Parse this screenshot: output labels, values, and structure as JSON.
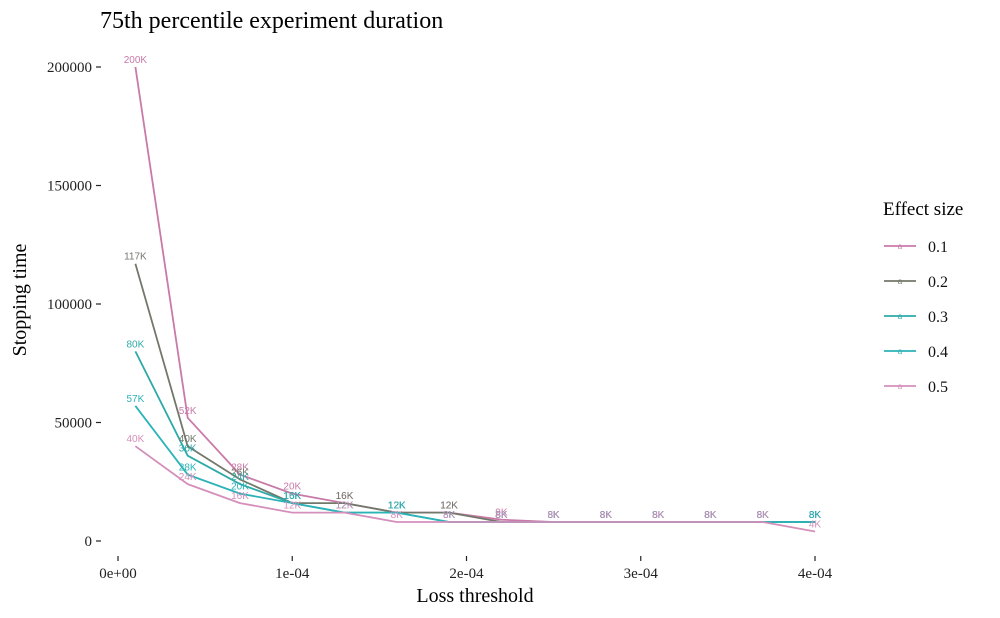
{
  "chart_data": {
    "type": "line",
    "title": "75th percentile experiment duration",
    "xlabel": "Loss threshold",
    "ylabel": "Stopping time",
    "xlim": [
      -1e-05,
      0.00042
    ],
    "ylim": [
      -5000,
      205000
    ],
    "x_ticks": [
      0,
      0.0001,
      0.0002,
      0.0003,
      0.0004
    ],
    "x_tick_labels": [
      "0e+00",
      "1e-04",
      "2e-04",
      "3e-04",
      "4e-04"
    ],
    "y_ticks": [
      0,
      50000,
      100000,
      150000,
      200000
    ],
    "y_tick_labels": [
      "0",
      "50000",
      "100000",
      "150000",
      "200000"
    ],
    "grid": false,
    "legend": {
      "title": "Effect size",
      "placement": "right",
      "glyph": "a"
    },
    "series": [
      {
        "name": "0.1",
        "color": "#c97aa8",
        "points": [
          {
            "x": 1e-05,
            "y": 200000,
            "label": "200K"
          },
          {
            "x": 4e-05,
            "y": 52000,
            "label": "52K"
          },
          {
            "x": 7e-05,
            "y": 28000,
            "label": "28K"
          },
          {
            "x": 0.0001,
            "y": 20000,
            "label": "20K"
          },
          {
            "x": 0.00013,
            "y": 16000,
            "label": "16K"
          },
          {
            "x": 0.00016,
            "y": 12000,
            "label": "12K"
          },
          {
            "x": 0.00019,
            "y": 12000,
            "label": "12K"
          },
          {
            "x": 0.00022,
            "y": 9000,
            "label": "9K"
          },
          {
            "x": 0.00025,
            "y": 8000,
            "label": "8K"
          },
          {
            "x": 0.00028,
            "y": 8000,
            "label": "8K"
          },
          {
            "x": 0.00031,
            "y": 8000,
            "label": "8K"
          },
          {
            "x": 0.00034,
            "y": 8000,
            "label": "8K"
          },
          {
            "x": 0.00037,
            "y": 8000,
            "label": "8K"
          },
          {
            "x": 0.0004,
            "y": 8000,
            "label": "8K"
          }
        ]
      },
      {
        "name": "0.2",
        "color": "#72786a",
        "points": [
          {
            "x": 1e-05,
            "y": 117000,
            "label": "117K"
          },
          {
            "x": 4e-05,
            "y": 40000,
            "label": "40K"
          },
          {
            "x": 7e-05,
            "y": 26000,
            "label": "26K"
          },
          {
            "x": 0.0001,
            "y": 16000,
            "label": "16K"
          },
          {
            "x": 0.00013,
            "y": 16000,
            "label": "16K"
          },
          {
            "x": 0.00016,
            "y": 12000,
            "label": "12K"
          },
          {
            "x": 0.00019,
            "y": 12000,
            "label": "12K"
          },
          {
            "x": 0.00022,
            "y": 8000,
            "label": "8K"
          },
          {
            "x": 0.00025,
            "y": 8000,
            "label": "8K"
          },
          {
            "x": 0.00028,
            "y": 8000,
            "label": "8K"
          },
          {
            "x": 0.00031,
            "y": 8000,
            "label": "8K"
          },
          {
            "x": 0.00034,
            "y": 8000,
            "label": "8K"
          },
          {
            "x": 0.00037,
            "y": 8000,
            "label": "8K"
          },
          {
            "x": 0.0004,
            "y": 8000,
            "label": "8K"
          }
        ]
      },
      {
        "name": "0.3",
        "color": "#2eaaa8",
        "points": [
          {
            "x": 1e-05,
            "y": 80000,
            "label": "80K"
          },
          {
            "x": 4e-05,
            "y": 36000,
            "label": "36K"
          },
          {
            "x": 7e-05,
            "y": 24000,
            "label": "24K"
          },
          {
            "x": 0.0001,
            "y": 16000,
            "label": "16K"
          },
          {
            "x": 0.00013,
            "y": 12000,
            "label": "12K"
          },
          {
            "x": 0.00016,
            "y": 12000,
            "label": "12K"
          },
          {
            "x": 0.00019,
            "y": 8000,
            "label": "8K"
          },
          {
            "x": 0.00022,
            "y": 8000,
            "label": "8K"
          },
          {
            "x": 0.00025,
            "y": 8000,
            "label": "8K"
          },
          {
            "x": 0.00028,
            "y": 8000,
            "label": "8K"
          },
          {
            "x": 0.00031,
            "y": 8000,
            "label": "8K"
          },
          {
            "x": 0.00034,
            "y": 8000,
            "label": "8K"
          },
          {
            "x": 0.00037,
            "y": 8000,
            "label": "8K"
          },
          {
            "x": 0.0004,
            "y": 8000,
            "label": "8K"
          }
        ]
      },
      {
        "name": "0.4",
        "color": "#2bb3b8",
        "points": [
          {
            "x": 1e-05,
            "y": 57000,
            "label": "57K"
          },
          {
            "x": 4e-05,
            "y": 28000,
            "label": "28K"
          },
          {
            "x": 7e-05,
            "y": 20000,
            "label": "20K"
          },
          {
            "x": 0.0001,
            "y": 16000,
            "label": "16K"
          },
          {
            "x": 0.00013,
            "y": 12000,
            "label": "12K"
          },
          {
            "x": 0.00016,
            "y": 12000,
            "label": "12K"
          },
          {
            "x": 0.00019,
            "y": 8000,
            "label": "8K"
          },
          {
            "x": 0.00022,
            "y": 8000,
            "label": "8K"
          },
          {
            "x": 0.00025,
            "y": 8000,
            "label": "8K"
          },
          {
            "x": 0.00028,
            "y": 8000,
            "label": "8K"
          },
          {
            "x": 0.00031,
            "y": 8000,
            "label": "8K"
          },
          {
            "x": 0.00034,
            "y": 8000,
            "label": "8K"
          },
          {
            "x": 0.00037,
            "y": 8000,
            "label": "8K"
          },
          {
            "x": 0.0004,
            "y": 8000,
            "label": "8K"
          }
        ]
      },
      {
        "name": "0.5",
        "color": "#d48fbb",
        "points": [
          {
            "x": 1e-05,
            "y": 40000,
            "label": "40K"
          },
          {
            "x": 4e-05,
            "y": 24000,
            "label": "24K"
          },
          {
            "x": 7e-05,
            "y": 16000,
            "label": "16K"
          },
          {
            "x": 0.0001,
            "y": 12000,
            "label": "12K"
          },
          {
            "x": 0.00013,
            "y": 12000,
            "label": "12K"
          },
          {
            "x": 0.00016,
            "y": 8000,
            "label": "8K"
          },
          {
            "x": 0.00019,
            "y": 8000,
            "label": "8K"
          },
          {
            "x": 0.00022,
            "y": 8000,
            "label": "8K"
          },
          {
            "x": 0.00025,
            "y": 8000,
            "label": "8K"
          },
          {
            "x": 0.00028,
            "y": 8000,
            "label": "8K"
          },
          {
            "x": 0.00031,
            "y": 8000,
            "label": "8K"
          },
          {
            "x": 0.00034,
            "y": 8000,
            "label": "8K"
          },
          {
            "x": 0.00037,
            "y": 8000,
            "label": "8K"
          },
          {
            "x": 0.0004,
            "y": 4000,
            "label": "4K"
          }
        ]
      }
    ]
  }
}
